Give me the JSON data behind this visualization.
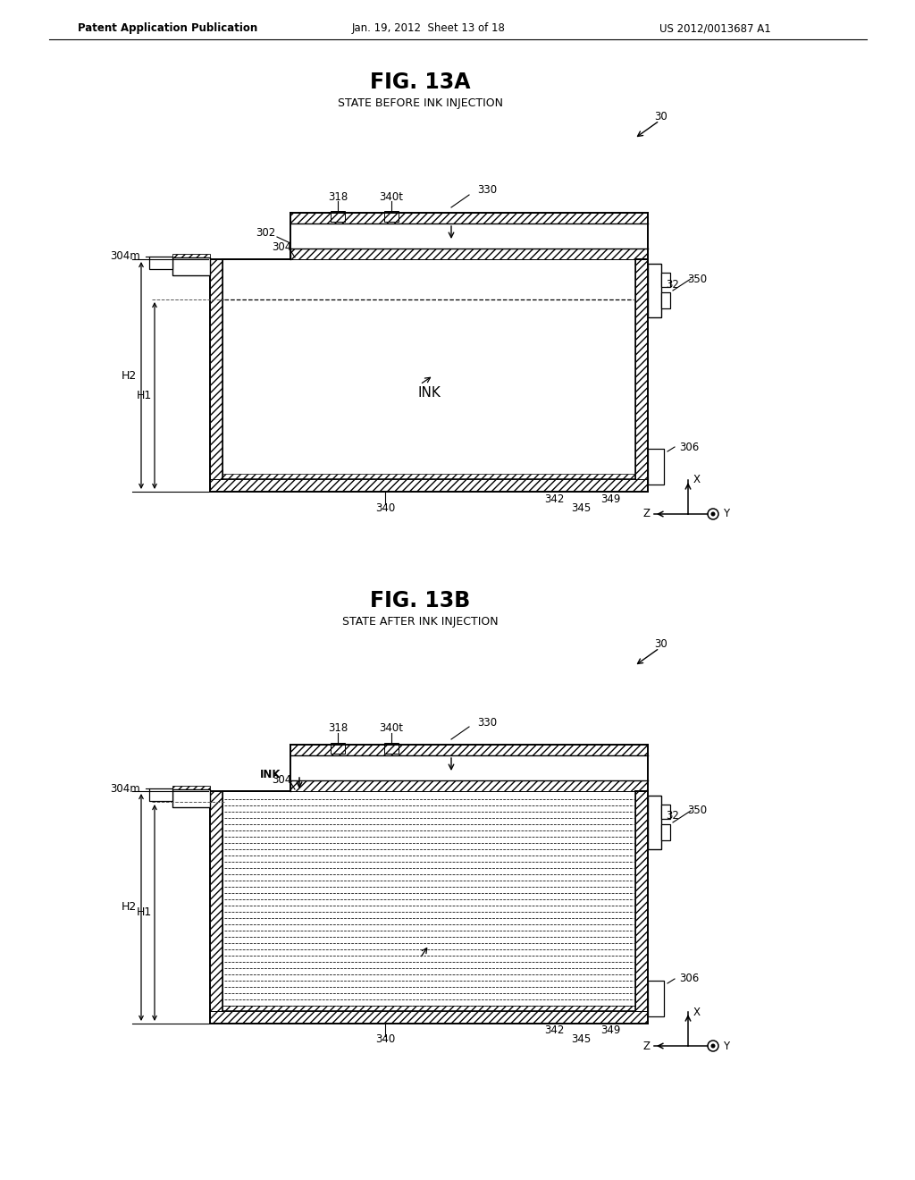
{
  "bg_color": "#ffffff",
  "header_text": "Patent Application Publication",
  "header_date": "Jan. 19, 2012  Sheet 13 of 18",
  "header_patent": "US 2012/0013687 A1",
  "fig13a_title": "FIG. 13A",
  "fig13a_subtitle": "STATE BEFORE INK INJECTION",
  "fig13b_title": "FIG. 13B",
  "fig13b_subtitle": "STATE AFTER INK INJECTION"
}
